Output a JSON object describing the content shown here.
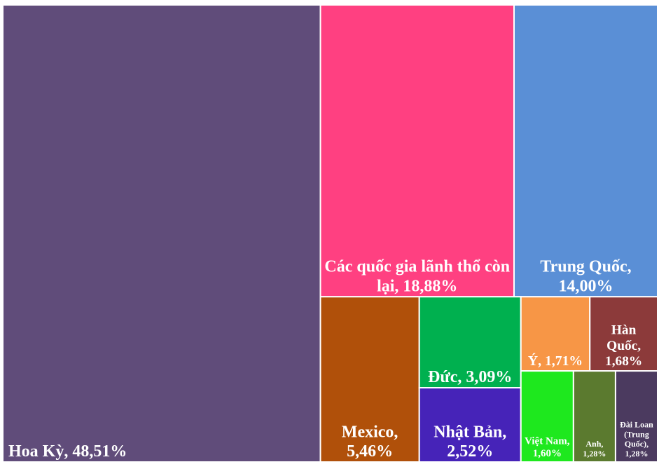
{
  "chart_data": {
    "type": "treemap",
    "labels": [
      "Hoa Kỳ, 48,51%",
      "Các quốc gia lãnh thổ còn lại, 18,88%",
      "Trung Quốc, 14,00%",
      "Mexico, 5,46%",
      "Đức, 3,09%",
      "Nhật Bản, 2,52%",
      "Ý, 1,71%",
      "Hàn Quốc, 1,68%",
      "Việt Nam, 1,60%",
      "Anh, 1,28%",
      "Đài Loan (Trung Quốc), 1,28%"
    ],
    "values": [
      48.51,
      18.88,
      14.0,
      5.46,
      3.09,
      2.52,
      1.71,
      1.68,
      1.6,
      1.28,
      1.28
    ],
    "colors": [
      "#604c7a",
      "#ff4081",
      "#5a8fd6",
      "#b0500a",
      "#00b04f",
      "#4623b8",
      "#f79646",
      "#8c3a3a",
      "#1ee81e",
      "#5b7a2f",
      "#4b3a5f"
    ]
  }
}
